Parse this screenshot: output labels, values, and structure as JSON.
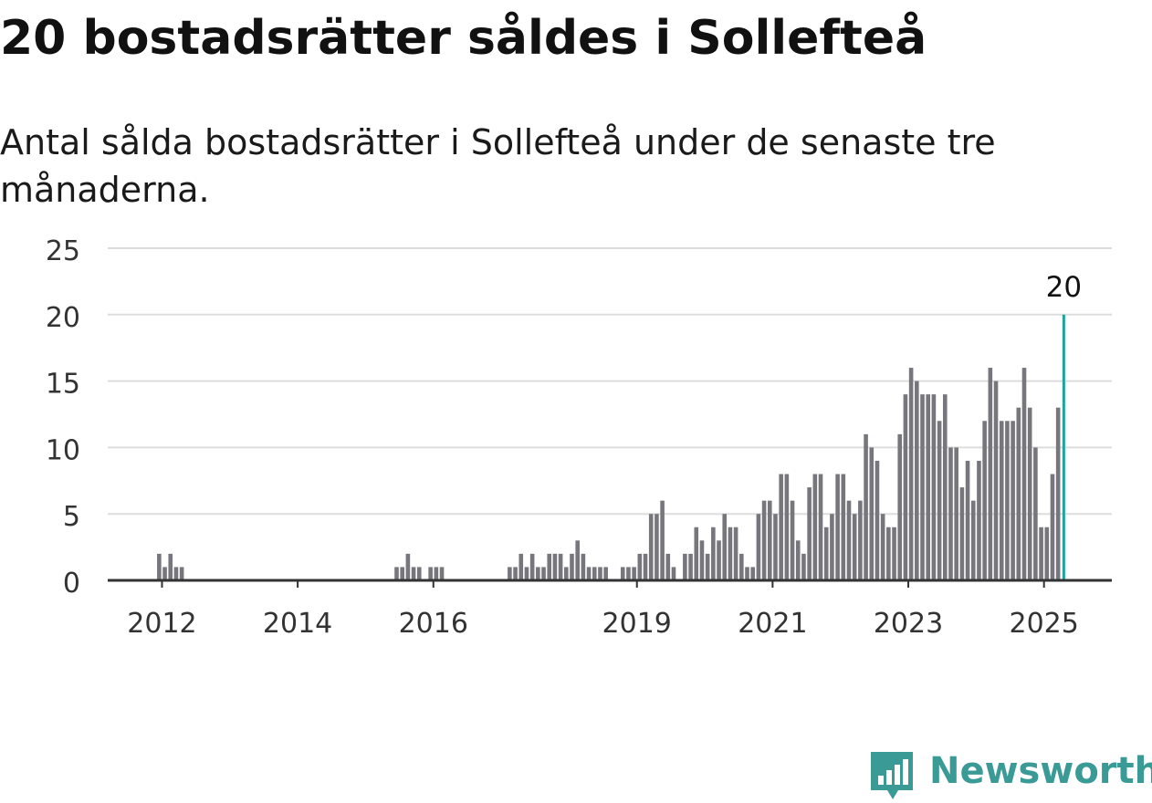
{
  "title": "20 bostadsrätter såldes i Sollefteå",
  "subtitle": "Antal sålda bostadsrätter i Sollefteå under de senaste tre månaderna.",
  "brand": {
    "name": "Newsworthy",
    "icon": "bar-chart-speech-bubble-icon",
    "color": "#3a9a96"
  },
  "chart_data": {
    "type": "bar",
    "x_ticks": [
      {
        "label": "2012",
        "value": 2012
      },
      {
        "label": "2014",
        "value": 2014
      },
      {
        "label": "2016",
        "value": 2016
      },
      {
        "label": "2019",
        "value": 2019
      },
      {
        "label": "2021",
        "value": 2021
      },
      {
        "label": "2023",
        "value": 2023
      },
      {
        "label": "2025",
        "value": 2025
      }
    ],
    "y_ticks": [
      0,
      5,
      10,
      15,
      20,
      25
    ],
    "ylim": [
      0,
      25
    ],
    "grid": "horizontal",
    "bar_color": "#77767c",
    "highlight_color": "#1aa5a0",
    "bars": [
      {
        "x": "2011-12",
        "value": 2
      },
      {
        "x": "2012-01",
        "value": 1
      },
      {
        "x": "2012-02",
        "value": 2
      },
      {
        "x": "2012-03",
        "value": 1
      },
      {
        "x": "2012-04",
        "value": 1
      },
      {
        "x": "2015-06",
        "value": 1
      },
      {
        "x": "2015-07",
        "value": 1
      },
      {
        "x": "2015-08",
        "value": 2
      },
      {
        "x": "2015-09",
        "value": 1
      },
      {
        "x": "2015-10",
        "value": 1
      },
      {
        "x": "2015-12",
        "value": 1
      },
      {
        "x": "2016-01",
        "value": 1
      },
      {
        "x": "2016-02",
        "value": 1
      },
      {
        "x": "2017-02",
        "value": 1
      },
      {
        "x": "2017-03",
        "value": 1
      },
      {
        "x": "2017-04",
        "value": 2
      },
      {
        "x": "2017-05",
        "value": 1
      },
      {
        "x": "2017-06",
        "value": 2
      },
      {
        "x": "2017-07",
        "value": 1
      },
      {
        "x": "2017-08",
        "value": 1
      },
      {
        "x": "2017-09",
        "value": 2
      },
      {
        "x": "2017-10",
        "value": 2
      },
      {
        "x": "2017-11",
        "value": 2
      },
      {
        "x": "2017-12",
        "value": 1
      },
      {
        "x": "2018-01",
        "value": 2
      },
      {
        "x": "2018-02",
        "value": 3
      },
      {
        "x": "2018-03",
        "value": 2
      },
      {
        "x": "2018-04",
        "value": 1
      },
      {
        "x": "2018-05",
        "value": 1
      },
      {
        "x": "2018-06",
        "value": 1
      },
      {
        "x": "2018-07",
        "value": 1
      },
      {
        "x": "2018-10",
        "value": 1
      },
      {
        "x": "2018-11",
        "value": 1
      },
      {
        "x": "2018-12",
        "value": 1
      },
      {
        "x": "2019-01",
        "value": 2
      },
      {
        "x": "2019-02",
        "value": 2
      },
      {
        "x": "2019-03",
        "value": 5
      },
      {
        "x": "2019-04",
        "value": 5
      },
      {
        "x": "2019-05",
        "value": 6
      },
      {
        "x": "2019-06",
        "value": 2
      },
      {
        "x": "2019-07",
        "value": 1
      },
      {
        "x": "2019-09",
        "value": 2
      },
      {
        "x": "2019-10",
        "value": 2
      },
      {
        "x": "2019-11",
        "value": 4
      },
      {
        "x": "2019-12",
        "value": 3
      },
      {
        "x": "2020-01",
        "value": 2
      },
      {
        "x": "2020-02",
        "value": 4
      },
      {
        "x": "2020-03",
        "value": 3
      },
      {
        "x": "2020-04",
        "value": 5
      },
      {
        "x": "2020-05",
        "value": 4
      },
      {
        "x": "2020-06",
        "value": 4
      },
      {
        "x": "2020-07",
        "value": 2
      },
      {
        "x": "2020-08",
        "value": 1
      },
      {
        "x": "2020-09",
        "value": 1
      },
      {
        "x": "2020-10",
        "value": 5
      },
      {
        "x": "2020-11",
        "value": 6
      },
      {
        "x": "2020-12",
        "value": 6
      },
      {
        "x": "2021-01",
        "value": 5
      },
      {
        "x": "2021-02",
        "value": 8
      },
      {
        "x": "2021-03",
        "value": 8
      },
      {
        "x": "2021-04",
        "value": 6
      },
      {
        "x": "2021-05",
        "value": 3
      },
      {
        "x": "2021-06",
        "value": 2
      },
      {
        "x": "2021-07",
        "value": 7
      },
      {
        "x": "2021-08",
        "value": 8
      },
      {
        "x": "2021-09",
        "value": 8
      },
      {
        "x": "2021-10",
        "value": 4
      },
      {
        "x": "2021-11",
        "value": 5
      },
      {
        "x": "2021-12",
        "value": 8
      },
      {
        "x": "2022-01",
        "value": 8
      },
      {
        "x": "2022-02",
        "value": 6
      },
      {
        "x": "2022-03",
        "value": 5
      },
      {
        "x": "2022-04",
        "value": 6
      },
      {
        "x": "2022-05",
        "value": 11
      },
      {
        "x": "2022-06",
        "value": 10
      },
      {
        "x": "2022-07",
        "value": 9
      },
      {
        "x": "2022-08",
        "value": 5
      },
      {
        "x": "2022-09",
        "value": 4
      },
      {
        "x": "2022-10",
        "value": 4
      },
      {
        "x": "2022-11",
        "value": 11
      },
      {
        "x": "2022-12",
        "value": 14
      },
      {
        "x": "2023-01",
        "value": 16
      },
      {
        "x": "2023-02",
        "value": 15
      },
      {
        "x": "2023-03",
        "value": 14
      },
      {
        "x": "2023-04",
        "value": 14
      },
      {
        "x": "2023-05",
        "value": 14
      },
      {
        "x": "2023-06",
        "value": 12
      },
      {
        "x": "2023-07",
        "value": 14
      },
      {
        "x": "2023-08",
        "value": 10
      },
      {
        "x": "2023-09",
        "value": 10
      },
      {
        "x": "2023-10",
        "value": 7
      },
      {
        "x": "2023-11",
        "value": 9
      },
      {
        "x": "2023-12",
        "value": 6
      },
      {
        "x": "2024-01",
        "value": 9
      },
      {
        "x": "2024-02",
        "value": 12
      },
      {
        "x": "2024-03",
        "value": 16
      },
      {
        "x": "2024-04",
        "value": 15
      },
      {
        "x": "2024-05",
        "value": 12
      },
      {
        "x": "2024-06",
        "value": 12
      },
      {
        "x": "2024-07",
        "value": 12
      },
      {
        "x": "2024-08",
        "value": 13
      },
      {
        "x": "2024-09",
        "value": 16
      },
      {
        "x": "2024-10",
        "value": 13
      },
      {
        "x": "2024-11",
        "value": 10
      },
      {
        "x": "2024-12",
        "value": 4
      },
      {
        "x": "2025-01",
        "value": 4
      },
      {
        "x": "2025-02",
        "value": 8
      },
      {
        "x": "2025-03",
        "value": 13
      },
      {
        "x": "2025-04",
        "value": 20,
        "highlight": true,
        "label": "20"
      }
    ]
  }
}
